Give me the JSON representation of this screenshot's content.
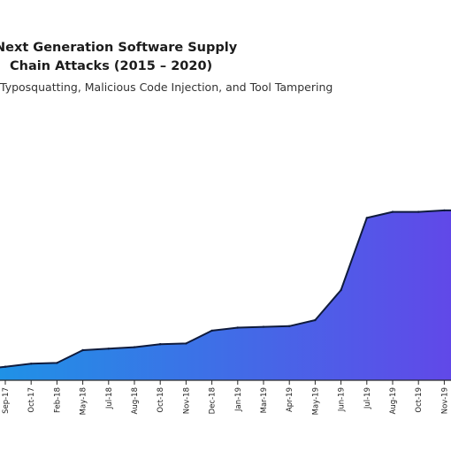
{
  "chart_data": {
    "type": "area",
    "title": [
      "Next Generation Software Supply",
      "Chain Attacks (2015 – 2020)"
    ],
    "subtitle": "Typosquatting, Malicious Code Injection, and Tool Tampering",
    "xlabel": "",
    "ylabel": "",
    "x": [
      "Sep-17",
      "Oct-17",
      "Feb-18",
      "May-18",
      "Jul-18",
      "Aug-18",
      "Oct-18",
      "Nov-18",
      "Dec-18",
      "Jan-19",
      "Mar-19",
      "Apr-19",
      "May-19",
      "Jun-19",
      "Jul-19",
      "Aug-19",
      "Oct-19",
      "Nov-19"
    ],
    "series": [
      {
        "values": [
          9,
          11,
          11.5,
          20,
          21,
          22,
          24,
          24.5,
          33,
          35,
          35.5,
          36,
          40,
          60,
          108,
          112,
          112,
          113
        ]
      }
    ],
    "ylim": [
      0,
      200
    ],
    "grid": false,
    "legend": "none",
    "colors": {
      "gradient_start": "#1e93e6",
      "gradient_end": "#6247e8",
      "line": "#0f1b3d",
      "axis": "#2a2a2a"
    }
  }
}
